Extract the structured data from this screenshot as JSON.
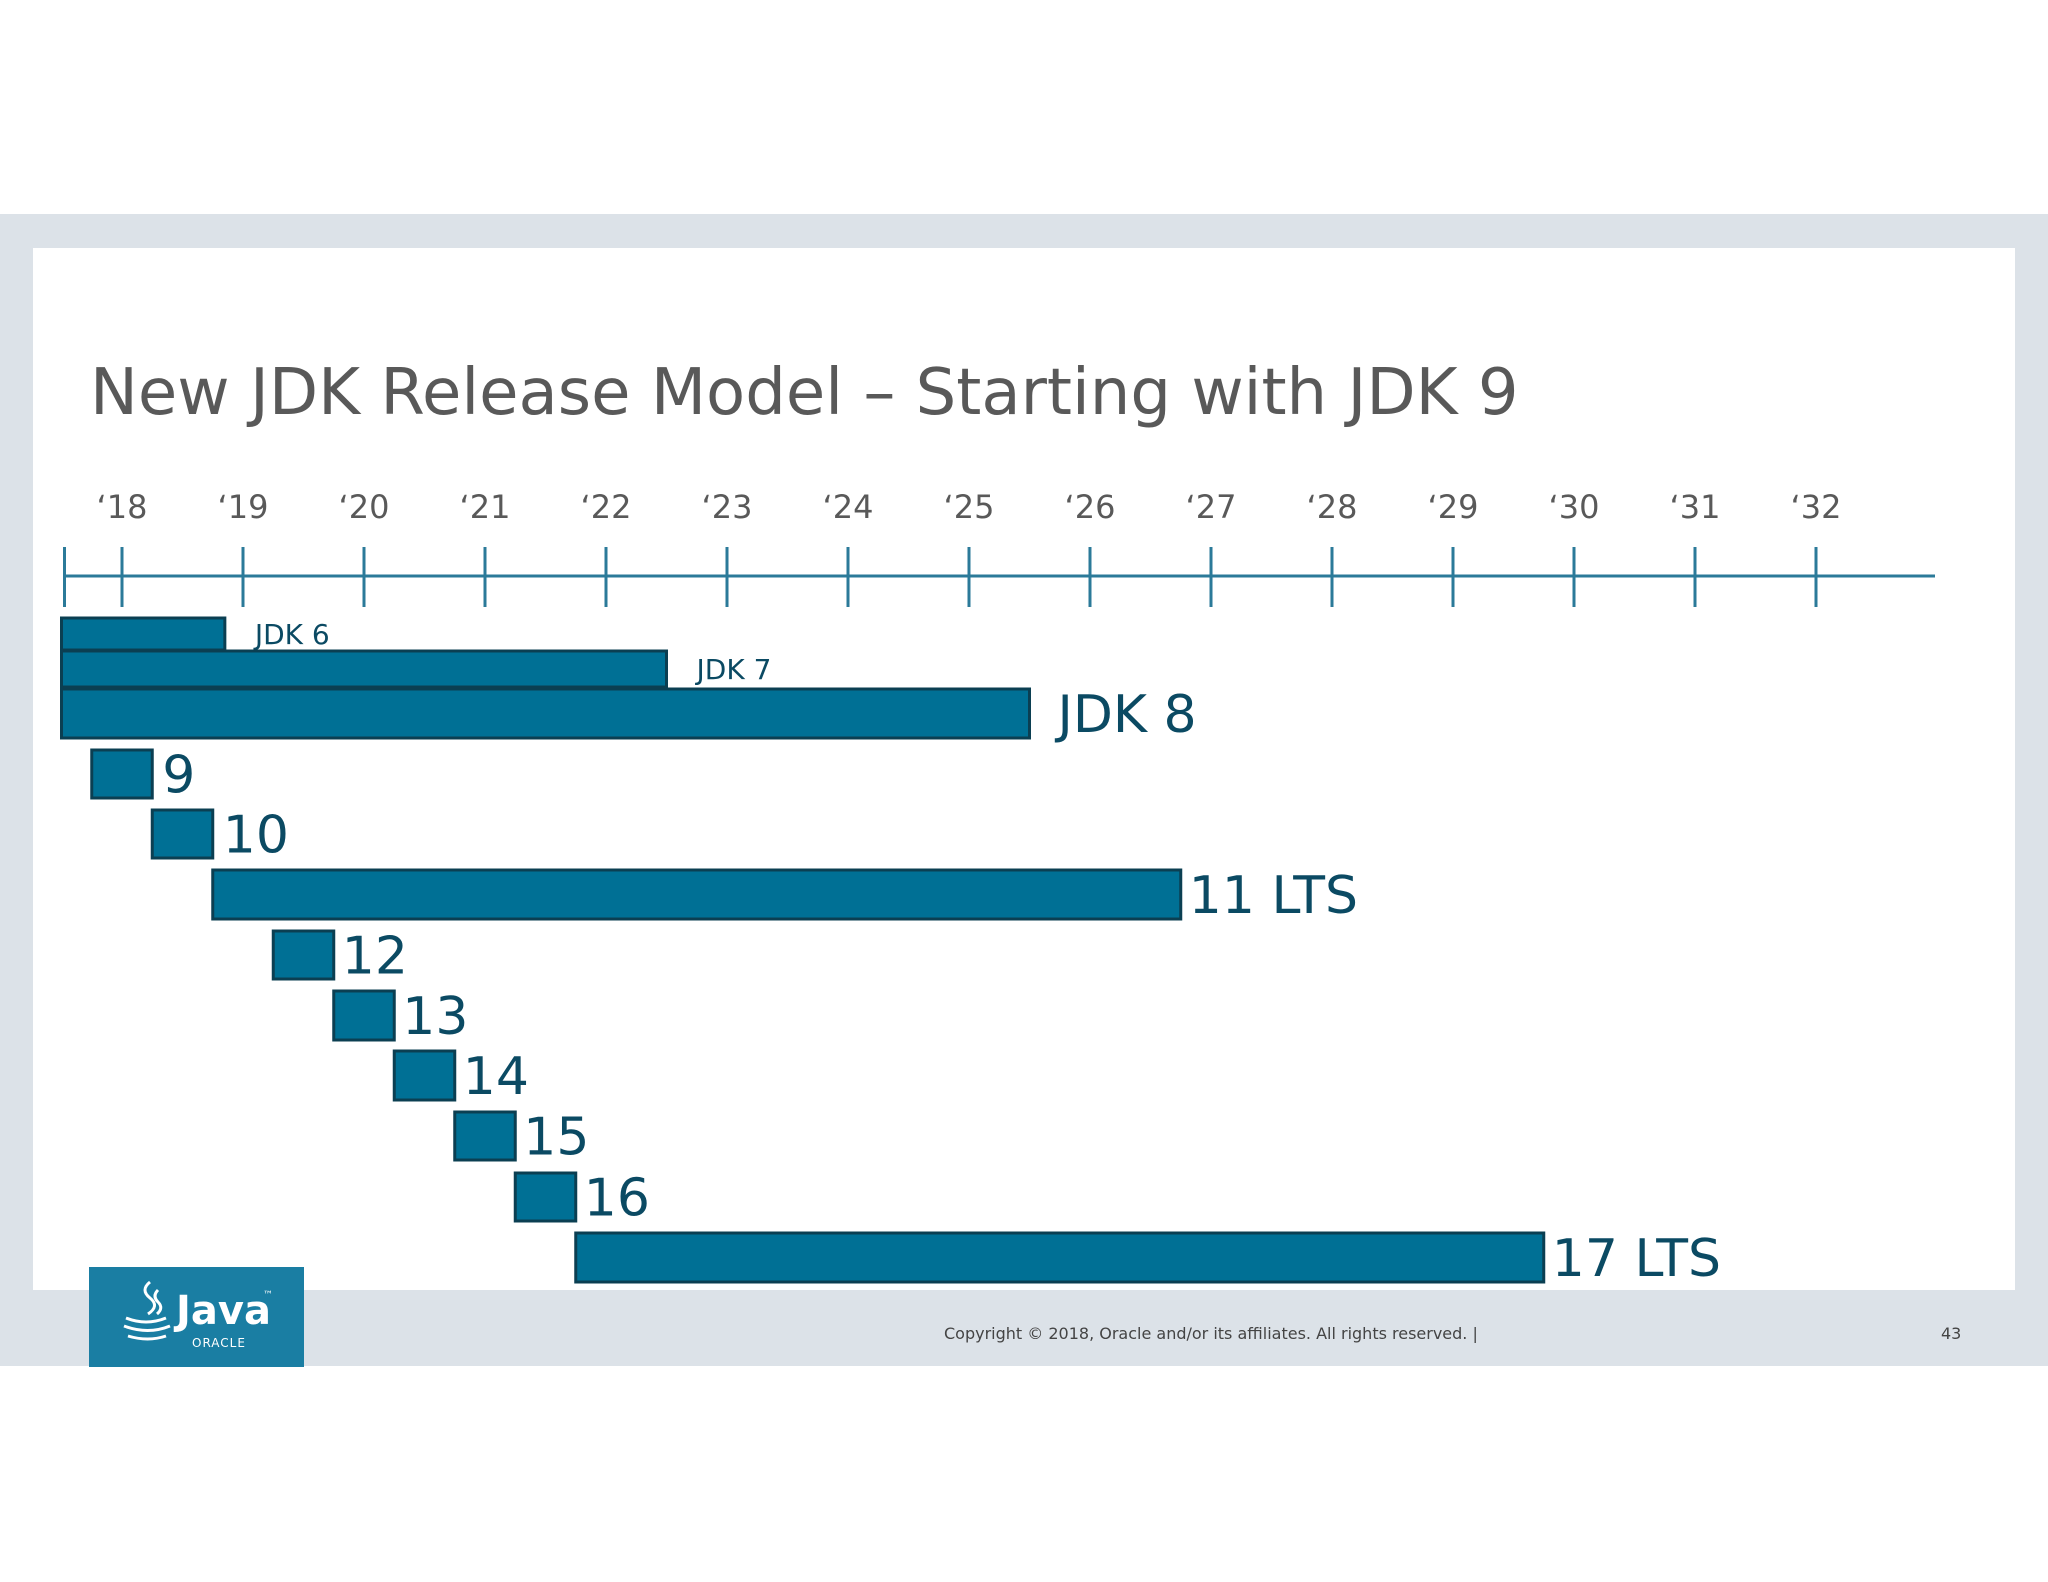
{
  "slide": {
    "title": "New JDK Release Model – Starting with JDK 9",
    "copyright": "Copyright © 2018, Oracle and/or its affiliates. All rights reserved.  |",
    "page_number": "43",
    "logo": {
      "wordmark": "Java",
      "trademark": "™",
      "company": "ORACLE"
    }
  },
  "colors": {
    "bar_fill": "#007095",
    "bar_stroke": "#0b3f52",
    "axis": "#2b7a99",
    "label": "#0b4a63",
    "frame": "#dce2e8",
    "logo_bg": "#1a7ea3"
  },
  "chart_data": {
    "type": "gantt",
    "title": "New JDK Release Model – Starting with JDK 9",
    "x_axis": {
      "ticks": [
        2018,
        2019,
        2020,
        2021,
        2022,
        2023,
        2024,
        2025,
        2026,
        2027,
        2028,
        2029,
        2030,
        2031,
        2032
      ],
      "tick_labels": [
        "‘18",
        "‘19",
        "‘20",
        "‘21",
        "‘22",
        "‘23",
        "‘24",
        "‘25",
        "‘26",
        "‘27",
        "‘28",
        "‘29",
        "‘30",
        "‘31",
        "‘32"
      ],
      "range": [
        2017.5,
        2033.0
      ]
    },
    "bars": [
      {
        "name": "JDK 6",
        "start": 2017.5,
        "end": 2018.85,
        "label_size": "small"
      },
      {
        "name": "JDK 7",
        "start": 2017.5,
        "end": 2022.5,
        "label_size": "small"
      },
      {
        "name": "JDK 8",
        "start": 2017.5,
        "end": 2025.5,
        "label_size": "large"
      },
      {
        "name": "9",
        "start": 2017.75,
        "end": 2018.25,
        "label_size": "large"
      },
      {
        "name": "10",
        "start": 2018.25,
        "end": 2018.75,
        "label_size": "large"
      },
      {
        "name": "11 LTS",
        "start": 2018.75,
        "end": 2026.75,
        "label_size": "large"
      },
      {
        "name": "12",
        "start": 2019.25,
        "end": 2019.75,
        "label_size": "large"
      },
      {
        "name": "13",
        "start": 2019.75,
        "end": 2020.25,
        "label_size": "large"
      },
      {
        "name": "14",
        "start": 2020.25,
        "end": 2020.75,
        "label_size": "large"
      },
      {
        "name": "15",
        "start": 2020.75,
        "end": 2021.25,
        "label_size": "large"
      },
      {
        "name": "16",
        "start": 2021.25,
        "end": 2021.75,
        "label_size": "large"
      },
      {
        "name": "17 LTS",
        "start": 2021.75,
        "end": 2029.75,
        "label_size": "large"
      }
    ]
  }
}
